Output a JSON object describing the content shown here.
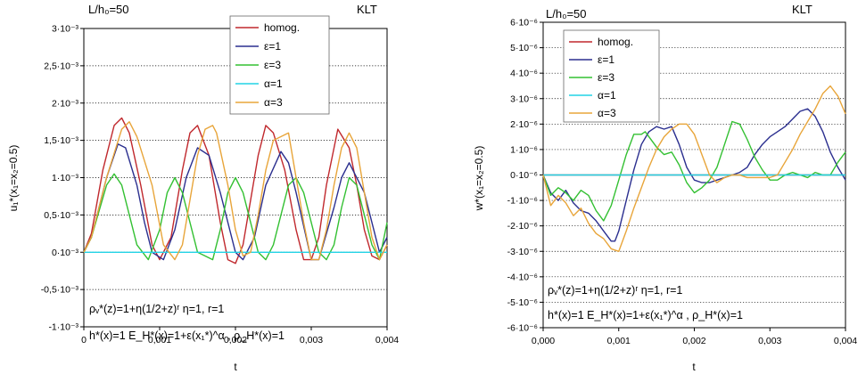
{
  "chart_data": [
    {
      "type": "line",
      "corner_left": "L/h₀=50",
      "corner_right": "KLT",
      "xlabel": "t",
      "ylabel": "u₁*(x₁=x₂=0.5)",
      "xlim": [
        0,
        0.004
      ],
      "ylim": [
        -0.001,
        0.003
      ],
      "xticks": [
        0,
        0.001,
        0.002,
        0.003,
        0.004
      ],
      "xtick_labels": [
        "0",
        "0,001",
        "0,002",
        "0,003",
        "0,004"
      ],
      "yticks": [
        -0.001,
        -0.0005,
        0,
        0.0005,
        0.001,
        0.0015,
        0.002,
        0.0025,
        0.003
      ],
      "ytick_labels": [
        "-1·10⁻³",
        "-0,5·10⁻³",
        "0·10⁻³",
        "0,5·10⁻³",
        "1·10⁻³",
        "1,5·10⁻³",
        "2·10⁻³",
        "2,5·10⁻³",
        "3·10⁻³"
      ],
      "grid": "horizontal dotted",
      "legend_position": "top-center",
      "annotations": [
        "ρᵥ*(z)=1+η(1/2+z)ʳ   η=1, r=1",
        "h*(x)=1    E_H*(x)=1+ε(x₁*)^α , ρ_H*(x)=1"
      ],
      "series": [
        {
          "name": "homog.",
          "color": "#c0282d",
          "x": [
            0,
            0.0001,
            0.00025,
            0.0004,
            0.0005,
            0.0006,
            0.00075,
            0.0009,
            0.001,
            0.00115,
            0.0013,
            0.0014,
            0.0015,
            0.00165,
            0.0018,
            0.0019,
            0.002,
            0.0021,
            0.0022,
            0.0023,
            0.0024,
            0.0025,
            0.00265,
            0.0028,
            0.0029,
            0.003,
            0.0031,
            0.0032,
            0.00335,
            0.0035,
            0.0036,
            0.0037,
            0.0038,
            0.0039,
            0.004
          ],
          "y": [
            0,
            0.00025,
            0.0011,
            0.0017,
            0.0018,
            0.0016,
            0.0009,
            0.0001,
            -0.0001,
            0.0002,
            0.0011,
            0.0016,
            0.0017,
            0.0013,
            0.0004,
            -0.0001,
            -0.00015,
            0.0001,
            0.0007,
            0.0013,
            0.0017,
            0.0016,
            0.0011,
            0.0003,
            -0.0001,
            -0.0001,
            0.0002,
            0.0009,
            0.00165,
            0.0014,
            0.0009,
            0.0003,
            -5e-05,
            -0.0001,
            0.0001
          ]
        },
        {
          "name": "ε=1",
          "color": "#2b2f8f",
          "x": [
            0,
            0.0001,
            0.0003,
            0.00045,
            0.00055,
            0.0007,
            0.0008,
            0.0009,
            0.00105,
            0.0012,
            0.00135,
            0.0015,
            0.00165,
            0.0018,
            0.002,
            0.0021,
            0.00225,
            0.0024,
            0.0026,
            0.0027,
            0.0028,
            0.003,
            0.0031,
            0.0033,
            0.0034,
            0.0035,
            0.0037,
            0.0039,
            0.004
          ],
          "y": [
            0,
            0.0002,
            0.001,
            0.00145,
            0.0014,
            0.0009,
            0.0004,
            0,
            -0.0001,
            0.0003,
            0.001,
            0.0014,
            0.0013,
            0.0008,
            0,
            -0.0001,
            0.0002,
            0.0009,
            0.00135,
            0.0012,
            0.0008,
            -0.0001,
            -0.0001,
            0.0006,
            0.001,
            0.0012,
            0.0008,
            0,
            0.0002
          ]
        },
        {
          "name": "ε=3",
          "color": "#33c032",
          "x": [
            0,
            0.0001,
            0.0003,
            0.0004,
            0.0005,
            0.0006,
            0.0007,
            0.00085,
            0.001,
            0.0011,
            0.0012,
            0.0013,
            0.0014,
            0.0015,
            0.0017,
            0.0018,
            0.0019,
            0.002,
            0.0021,
            0.0022,
            0.0023,
            0.0024,
            0.0025,
            0.0026,
            0.0027,
            0.0028,
            0.0029,
            0.003,
            0.0031,
            0.0032,
            0.0033,
            0.0034,
            0.0035,
            0.0036,
            0.0037,
            0.0038,
            0.0039,
            0.004
          ],
          "y": [
            0,
            0.0002,
            0.0009,
            0.00105,
            0.0009,
            0.0005,
            0.0001,
            -0.0001,
            0.0003,
            0.0008,
            0.001,
            0.0008,
            0.0004,
            0,
            -0.0001,
            0.0003,
            0.0008,
            0.001,
            0.0008,
            0.0004,
            0,
            -0.0001,
            0.0001,
            0.0005,
            0.0009,
            0.001,
            0.0008,
            0.0004,
            0,
            -0.0001,
            0.0001,
            0.0006,
            0.001,
            0.0009,
            0.0005,
            0.0001,
            -0.0001,
            0.0004
          ]
        },
        {
          "name": "α=1",
          "color": "#22d3e6",
          "x": [
            0,
            0.004
          ],
          "y": [
            0,
            0
          ]
        },
        {
          "name": "α=3",
          "color": "#e8a53a",
          "x": [
            0,
            0.0001,
            0.0003,
            0.0005,
            0.0006,
            0.0007,
            0.0009,
            0.00105,
            0.0012,
            0.0013,
            0.0014,
            0.0015,
            0.0016,
            0.0017,
            0.00175,
            0.0019,
            0.002,
            0.0021,
            0.0022,
            0.0023,
            0.0024,
            0.0025,
            0.0027,
            0.0028,
            0.0029,
            0.003,
            0.0031,
            0.0032,
            0.0033,
            0.0034,
            0.0035,
            0.0036,
            0.0037,
            0.0038,
            0.0039,
            0.004
          ],
          "y": [
            0,
            0.0002,
            0.001,
            0.00165,
            0.00175,
            0.00155,
            0.0009,
            0.0001,
            -0.0001,
            0.0001,
            0.0007,
            0.0013,
            0.00165,
            0.0017,
            0.0016,
            0.0009,
            0.0003,
            -5e-05,
            0,
            0.0005,
            0.0011,
            0.0015,
            0.0016,
            0.001,
            0.0004,
            -0.0001,
            -0.0001,
            0.0003,
            0.0009,
            0.0014,
            0.0016,
            0.0014,
            0.0008,
            0.0002,
            -0.0001,
            0.0001
          ]
        }
      ]
    },
    {
      "type": "line",
      "corner_left": "L/h₀=50",
      "corner_right": "KLT",
      "xlabel": "t",
      "ylabel": "w*(x₁=x₂=0.5)",
      "xlim": [
        0,
        0.004
      ],
      "ylim": [
        -6e-06,
        6e-06
      ],
      "xticks": [
        0,
        0.001,
        0.002,
        0.003,
        0.004
      ],
      "xtick_labels": [
        "0,000",
        "0,001",
        "0,002",
        "0,003",
        "0,004"
      ],
      "yticks": [
        -6e-06,
        -5e-06,
        -4e-06,
        -3e-06,
        -2e-06,
        -1e-06,
        0,
        1e-06,
        2e-06,
        3e-06,
        4e-06,
        5e-06,
        6e-06
      ],
      "ytick_labels": [
        "-6·10⁻⁶",
        "-5·10⁻⁶",
        "-4·10⁻⁶",
        "-3·10⁻⁶",
        "-2·10⁻⁶",
        "-1·10⁻⁶",
        "0·10⁻⁶",
        "1·10⁻⁶",
        "2·10⁻⁶",
        "3·10⁻⁶",
        "4·10⁻⁶",
        "5·10⁻⁶",
        "6·10⁻⁶"
      ],
      "grid": "horizontal dotted",
      "legend_position": "top-left",
      "annotations": [
        "ρᵥ*(z)=1+η(1/2+z)ʳ   η=1, r=1",
        "h*(x)=1      E_H*(x)=1+ε(x₁*)^α , ρ_H*(x)=1"
      ],
      "series": [
        {
          "name": "homog.",
          "color": "#c0282d",
          "x": [
            0,
            0.004
          ],
          "y": [
            0,
            0
          ]
        },
        {
          "name": "ε=1",
          "color": "#2b2f8f",
          "x": [
            0,
            0.0001,
            0.0002,
            0.0003,
            0.0004,
            0.0005,
            0.0006,
            0.0007,
            0.0008,
            0.0009,
            0.00095,
            0.001,
            0.0011,
            0.0012,
            0.0013,
            0.0014,
            0.0015,
            0.0016,
            0.0017,
            0.0018,
            0.0019,
            0.002,
            0.0021,
            0.0022,
            0.0023,
            0.0024,
            0.0025,
            0.0026,
            0.0027,
            0.0028,
            0.0029,
            0.003,
            0.0031,
            0.0032,
            0.0033,
            0.0034,
            0.0035,
            0.0036,
            0.0037,
            0.0038,
            0.0039,
            0.004
          ],
          "y": [
            0,
            -7e-07,
            -1e-06,
            -6e-07,
            -1.1e-06,
            -1.4e-06,
            -1.5e-06,
            -1.8e-06,
            -2.2e-06,
            -2.6e-06,
            -2.6e-06,
            -2.2e-06,
            -1e-06,
            2e-07,
            1.2e-06,
            1.7e-06,
            1.9e-06,
            1.8e-06,
            1.9e-06,
            1.2e-06,
            3e-07,
            -2e-07,
            -3e-07,
            -3e-07,
            -2e-07,
            -1e-07,
            0,
            1e-07,
            3e-07,
            8e-07,
            1.2e-06,
            1.5e-06,
            1.7e-06,
            1.9e-06,
            2.2e-06,
            2.5e-06,
            2.6e-06,
            2.3e-06,
            1.7e-06,
            9e-07,
            3e-07,
            -2e-07
          ]
        },
        {
          "name": "ε=3",
          "color": "#33c032",
          "x": [
            0,
            0.0001,
            0.0002,
            0.0003,
            0.0004,
            0.0005,
            0.0006,
            0.0007,
            0.0008,
            0.0009,
            0.001,
            0.0011,
            0.0012,
            0.0013,
            0.00135,
            0.0014,
            0.0015,
            0.0016,
            0.0017,
            0.0018,
            0.0019,
            0.002,
            0.0021,
            0.0022,
            0.0023,
            0.0024,
            0.0025,
            0.0026,
            0.0027,
            0.0028,
            0.0029,
            0.003,
            0.0031,
            0.0032,
            0.0033,
            0.0034,
            0.0035,
            0.0036,
            0.0037,
            0.0038,
            0.0039,
            0.004
          ],
          "y": [
            0,
            -8e-07,
            -5e-07,
            -7e-07,
            -1e-06,
            -6e-07,
            -8e-07,
            -1.4e-06,
            -1.8e-06,
            -1.2e-06,
            -2e-07,
            8e-07,
            1.6e-06,
            1.6e-06,
            1.7e-06,
            1.5e-06,
            1.1e-06,
            8e-07,
            9e-07,
            4e-07,
            -3e-07,
            -7e-07,
            -5e-07,
            -2e-07,
            3e-07,
            1.2e-06,
            2.1e-06,
            2e-06,
            1.4e-06,
            7e-07,
            2e-07,
            -2e-07,
            -2e-07,
            0,
            1e-07,
            0,
            -1e-07,
            1e-07,
            0,
            0,
            5e-07,
            9e-07
          ]
        },
        {
          "name": "α=1",
          "color": "#22d3e6",
          "x": [
            0,
            0.004
          ],
          "y": [
            0,
            0
          ]
        },
        {
          "name": "α=3",
          "color": "#e8a53a",
          "x": [
            0,
            0.0001,
            0.0002,
            0.0003,
            0.0004,
            0.0005,
            0.0006,
            0.0007,
            0.0008,
            0.0009,
            0.001,
            0.0011,
            0.0012,
            0.0013,
            0.0014,
            0.0015,
            0.0016,
            0.0017,
            0.0018,
            0.0019,
            0.002,
            0.0021,
            0.0022,
            0.0023,
            0.0024,
            0.0025,
            0.0026,
            0.0027,
            0.0028,
            0.0029,
            0.003,
            0.0031,
            0.0032,
            0.0033,
            0.0034,
            0.0035,
            0.0036,
            0.0037,
            0.0038,
            0.0039,
            0.004
          ],
          "y": [
            0,
            -1.2e-06,
            -8e-07,
            -1.1e-06,
            -1.6e-06,
            -1.3e-06,
            -1.9e-06,
            -2.3e-06,
            -2.5e-06,
            -2.9e-06,
            -3e-06,
            -2.2e-06,
            -1.3e-06,
            -5e-07,
            3e-07,
            1e-06,
            1.5e-06,
            1.8e-06,
            2e-06,
            2e-06,
            1.6e-06,
            8e-07,
            0,
            -3e-07,
            -1e-07,
            0,
            0,
            -1e-07,
            -1e-07,
            -1e-07,
            -1e-07,
            0,
            5e-07,
            1e-06,
            1.6e-06,
            2.1e-06,
            2.6e-06,
            3.2e-06,
            3.5e-06,
            3.1e-06,
            2.4e-06
          ]
        }
      ]
    }
  ]
}
